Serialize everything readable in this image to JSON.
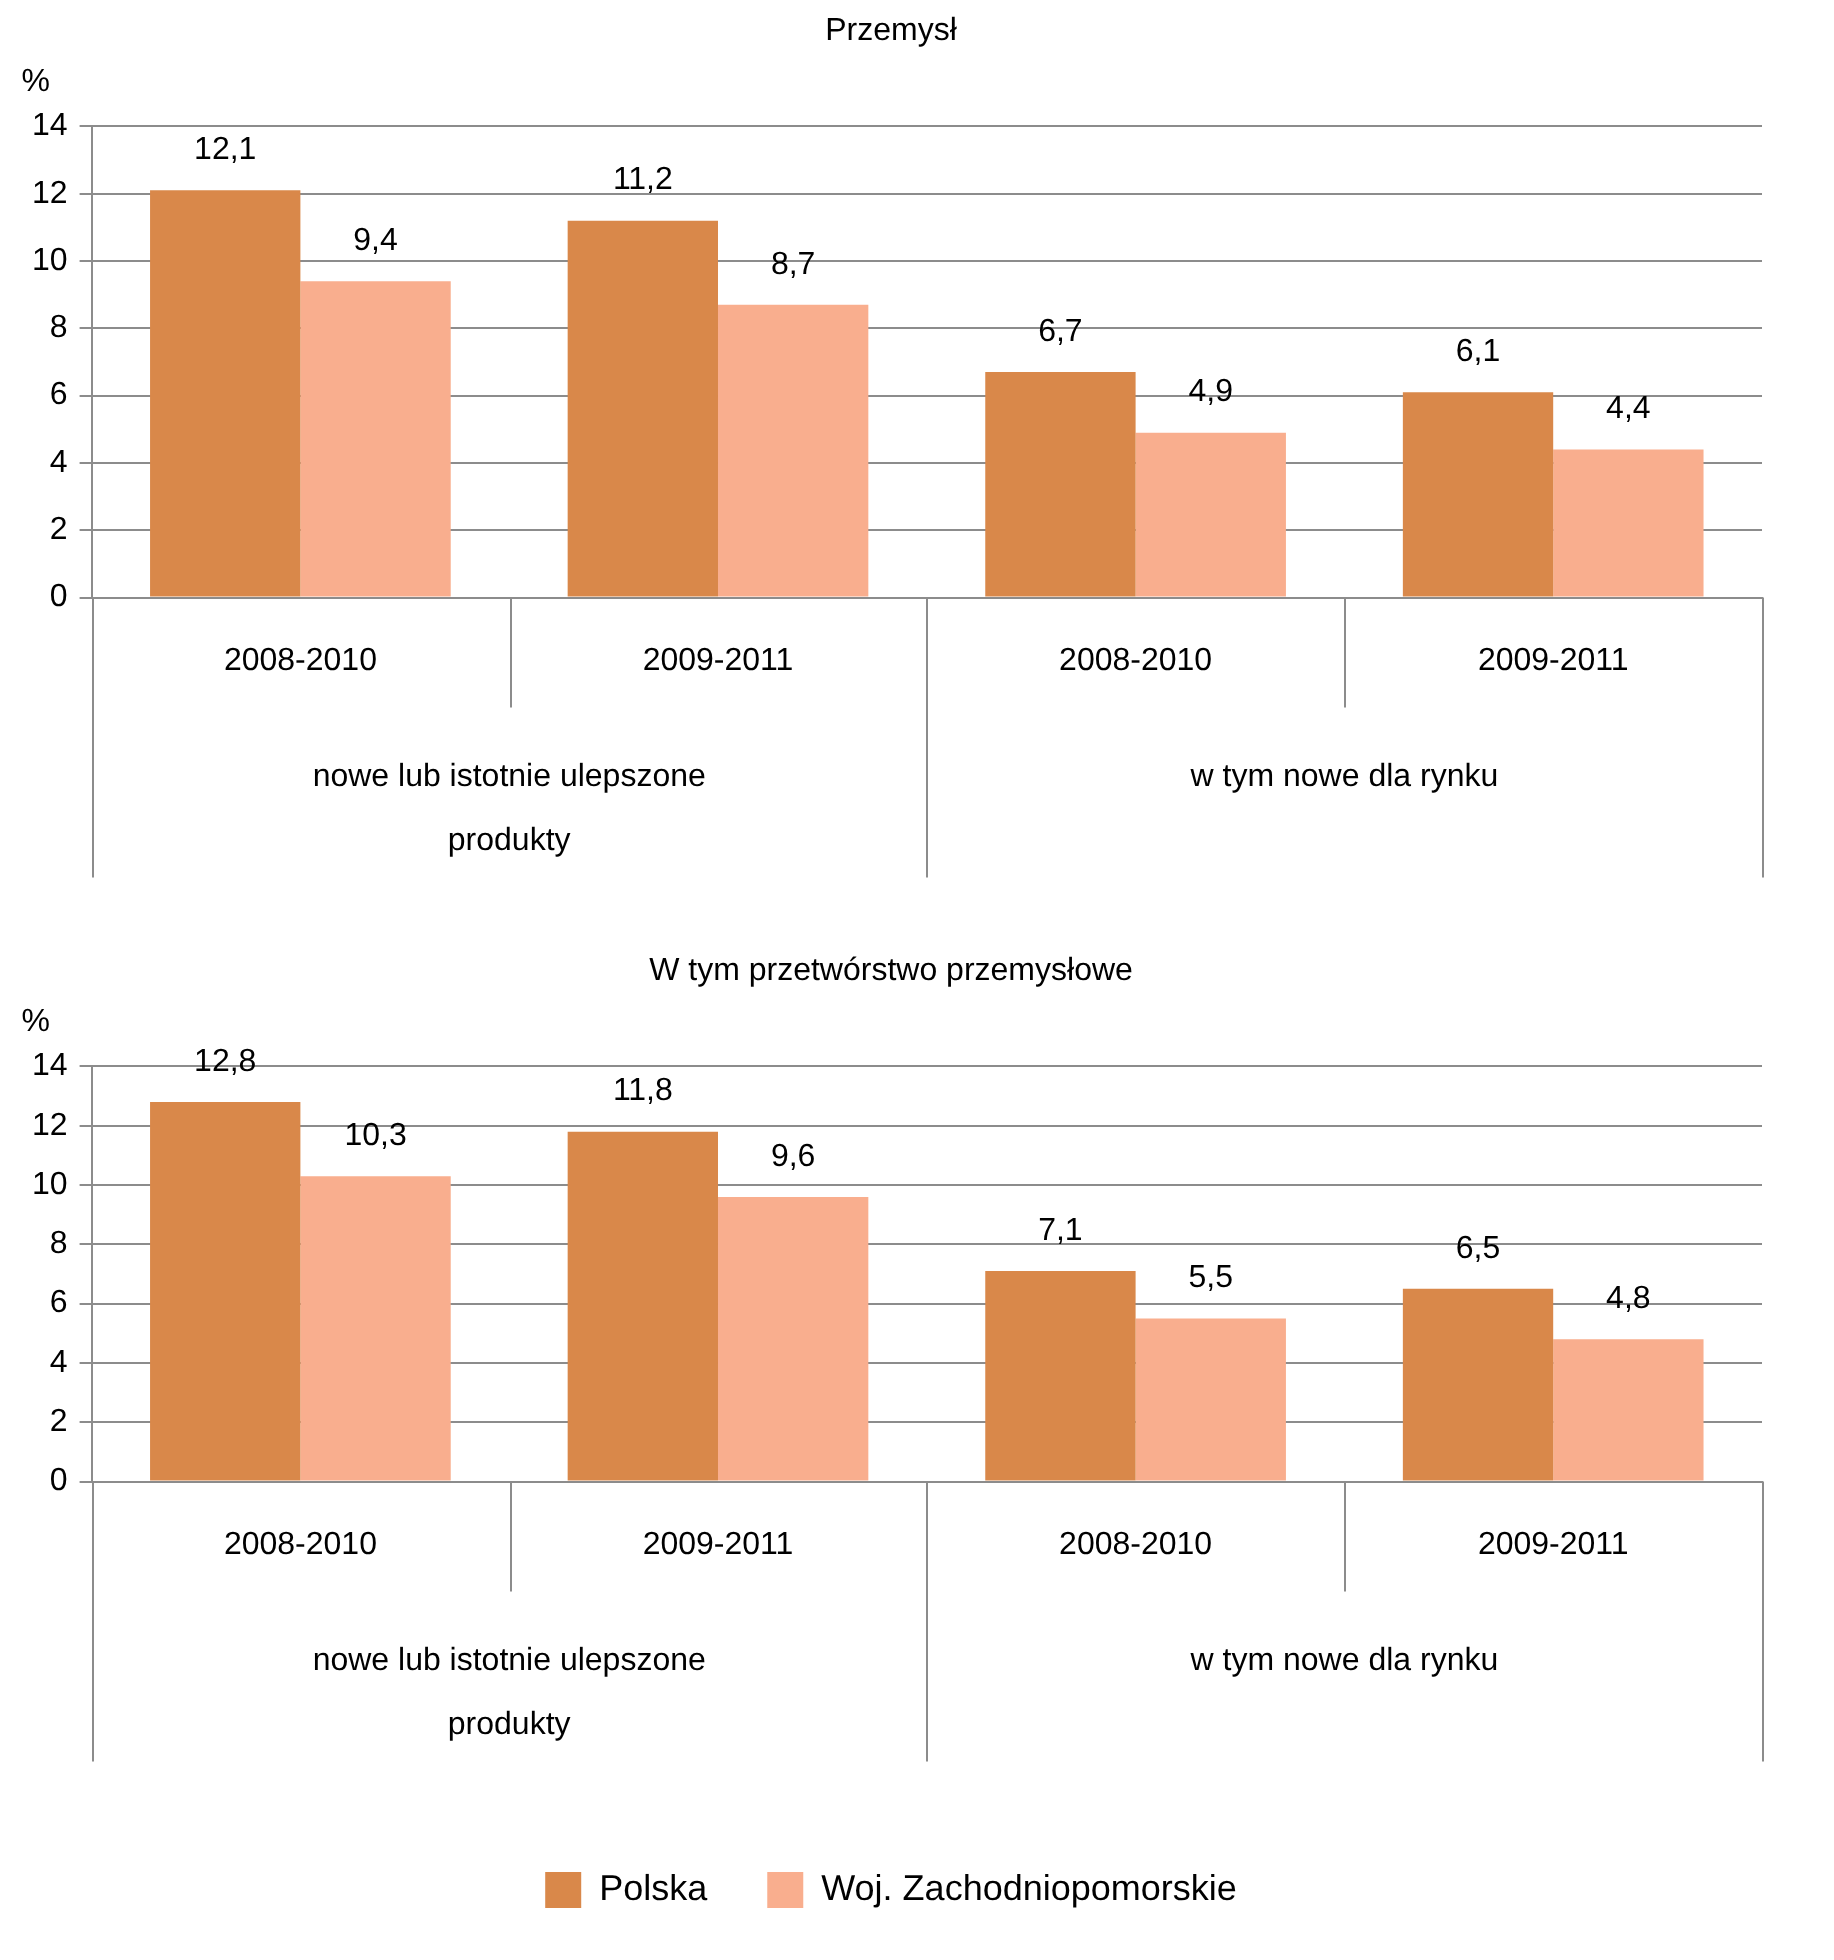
{
  "chart_data": [
    {
      "type": "bar",
      "title": "Przemysł",
      "ylabel": "%",
      "categories": [
        "2008-2010",
        "2009-2011",
        "2008-2010",
        "2009-2011"
      ],
      "annotations": [
        "nowe lub istotnie ulepszone produkty",
        "w tym nowe dla rynku"
      ],
      "series": [
        {
          "color": "#d9884a",
          "values": [
            12.1,
            11.2,
            6.7,
            6.1
          ],
          "value_labels": [
            "12,1",
            "11,2",
            "6,7",
            "6,1"
          ]
        },
        {
          "color": "#f9ae8e",
          "values": [
            9.4,
            8.7,
            4.9,
            4.4
          ],
          "value_labels": [
            "9,4",
            "8,7",
            "4,9",
            "4,4"
          ]
        }
      ],
      "ylim": [
        0,
        14
      ],
      "yticks": [
        0,
        2,
        4,
        6,
        8,
        10,
        12,
        14
      ],
      "grid": "y",
      "legend": false
    },
    {
      "type": "bar",
      "title": "W tym przetwórstwo przemysłowe",
      "ylabel": "%",
      "categories": [
        "2008-2010",
        "2009-2011",
        "2008-2010",
        "2009-2011"
      ],
      "annotations": [
        "nowe lub istotnie ulepszone produkty",
        "w tym nowe dla rynku"
      ],
      "series": [
        {
          "name": "Polska",
          "color": "#d9884a",
          "values": [
            12.8,
            11.8,
            7.1,
            6.5
          ],
          "value_labels": [
            "12,8",
            "11,8",
            "7,1",
            "6,5"
          ]
        },
        {
          "name": "Woj. Zachodniopomorskie",
          "color": "#f9ae8e",
          "values": [
            10.3,
            9.6,
            5.5,
            4.8
          ],
          "value_labels": [
            "10,3",
            "9,6",
            "5,5",
            "4,8"
          ]
        }
      ],
      "ylim": [
        0,
        14
      ],
      "yticks": [
        0,
        2,
        4,
        6,
        8,
        10,
        12,
        14
      ],
      "grid": "y",
      "legend": "bottom"
    }
  ]
}
